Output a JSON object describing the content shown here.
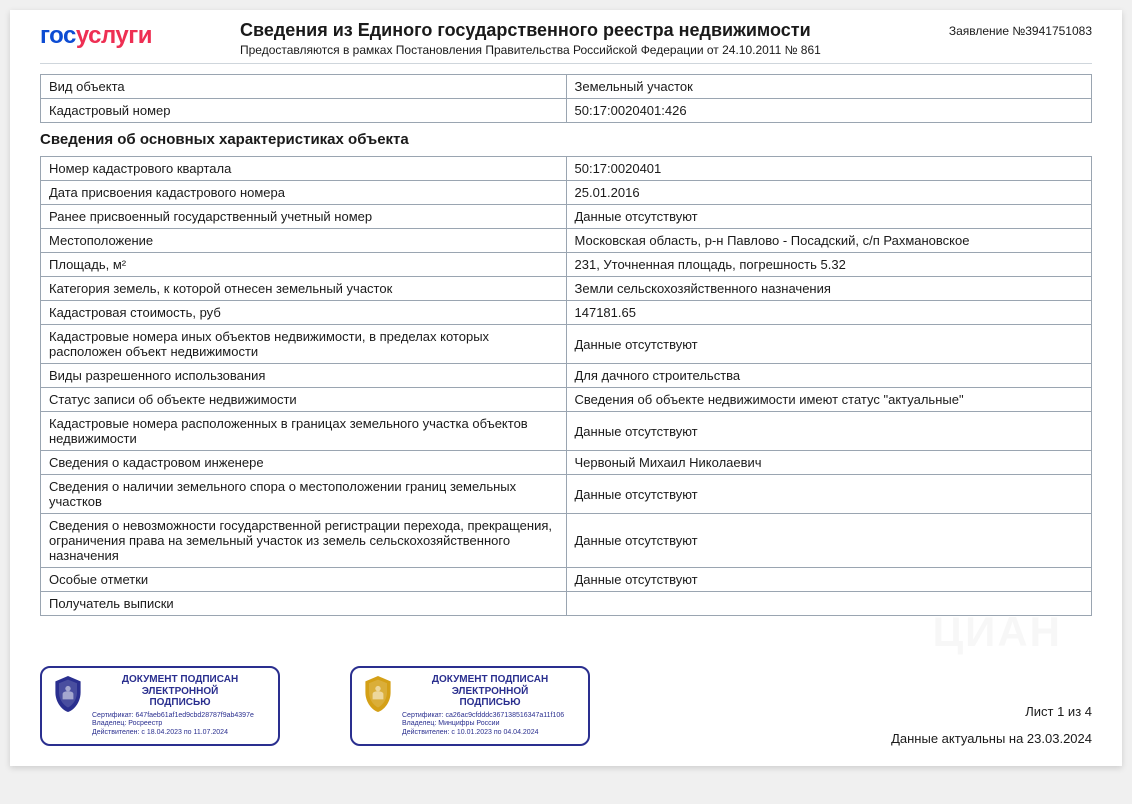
{
  "logo": {
    "part1": "гос",
    "part2": "услуги"
  },
  "header": {
    "title": "Сведения из Единого государственного реестра недвижимости",
    "subtitle": "Предоставляются в рамках Постановления Правительства Российской Федерации от 24.10.2011 № 861",
    "application_no": "Заявление №3941751083"
  },
  "top_table": {
    "rows": [
      {
        "label": "Вид объекта",
        "value": "Земельный участок"
      },
      {
        "label": "Кадастровый номер",
        "value": "50:17:0020401:426"
      }
    ]
  },
  "section_title": "Сведения об основных характеристиках объекта",
  "details_table": {
    "rows": [
      {
        "label": "Номер кадастрового квартала",
        "value": "50:17:0020401"
      },
      {
        "label": "Дата присвоения кадастрового номера",
        "value": "25.01.2016"
      },
      {
        "label": "Ранее присвоенный государственный учетный номер",
        "value": "Данные отсутствуют"
      },
      {
        "label": "Местоположение",
        "value": "Московская область, р-н Павлово - Посадский, с/п Рахмановское"
      },
      {
        "label": "Площадь, м²",
        "value": "231, Уточненная площадь, погрешность 5.32"
      },
      {
        "label": "Категория земель, к которой отнесен земельный участок",
        "value": "Земли сельскохозяйственного назначения"
      },
      {
        "label": "Кадастровая стоимость, руб",
        "value": "147181.65"
      },
      {
        "label": "Кадастровые номера иных объектов недвижимости, в пределах которых расположен объект недвижимости",
        "value": "Данные отсутствуют"
      },
      {
        "label": "Виды разрешенного использования",
        "value": "Для дачного строительства"
      },
      {
        "label": "Статус записи об объекте недвижимости",
        "value": "Сведения об объекте недвижимости имеют статус \"актуальные\""
      },
      {
        "label": "Кадастровые номера расположенных в границах земельного участка объектов недвижимости",
        "value": "Данные отсутствуют"
      },
      {
        "label": "Сведения о кадастровом инженере",
        "value": "Червоный Михаил Николаевич"
      },
      {
        "label": "Сведения о наличии земельного спора о местоположении границ земельных участков",
        "value": "Данные отсутствуют"
      },
      {
        "label": "Сведения о невозможности государственной регистрации перехода, прекращения, ограничения права на земельный участок из земель сельскохозяйственного назначения",
        "value": "Данные отсутствуют"
      },
      {
        "label": "Особые отметки",
        "value": "Данные отсутствуют"
      },
      {
        "label": "Получатель выписки",
        "value": ""
      }
    ]
  },
  "signatures": [
    {
      "title_l1": "ДОКУМЕНТ ПОДПИСАН",
      "title_l2": "ЭЛЕКТРОННОЙ",
      "title_l3": "ПОДПИСЬЮ",
      "cert": "Сертификат: 647fаеb61аf1еd9сbd28787f9аb4397е",
      "owner": "Владелец: Росреестр",
      "valid": "Действителен: с 18.04.2023 по 11.07.2024",
      "emblem_color": "#2a2f8f"
    },
    {
      "title_l1": "ДОКУМЕНТ ПОДПИСАН",
      "title_l2": "ЭЛЕКТРОННОЙ",
      "title_l3": "ПОДПИСЬЮ",
      "cert": "Сертификат: са26ас9сfdddс367138516347а11f106",
      "owner": "Владелец: Минцифры России",
      "valid": "Действителен: с 10.01.2023 по 04.04.2024",
      "emblem_color": "#d4a017"
    }
  ],
  "footer": {
    "page_count": "Лист 1 из  4",
    "actual": "Данные актуальны на 23.03.2024"
  },
  "colors": {
    "border": "#9aa5b1",
    "logo_blue": "#0d4cd3",
    "logo_red": "#ee2f53",
    "sig_border": "#2a2f8f"
  }
}
